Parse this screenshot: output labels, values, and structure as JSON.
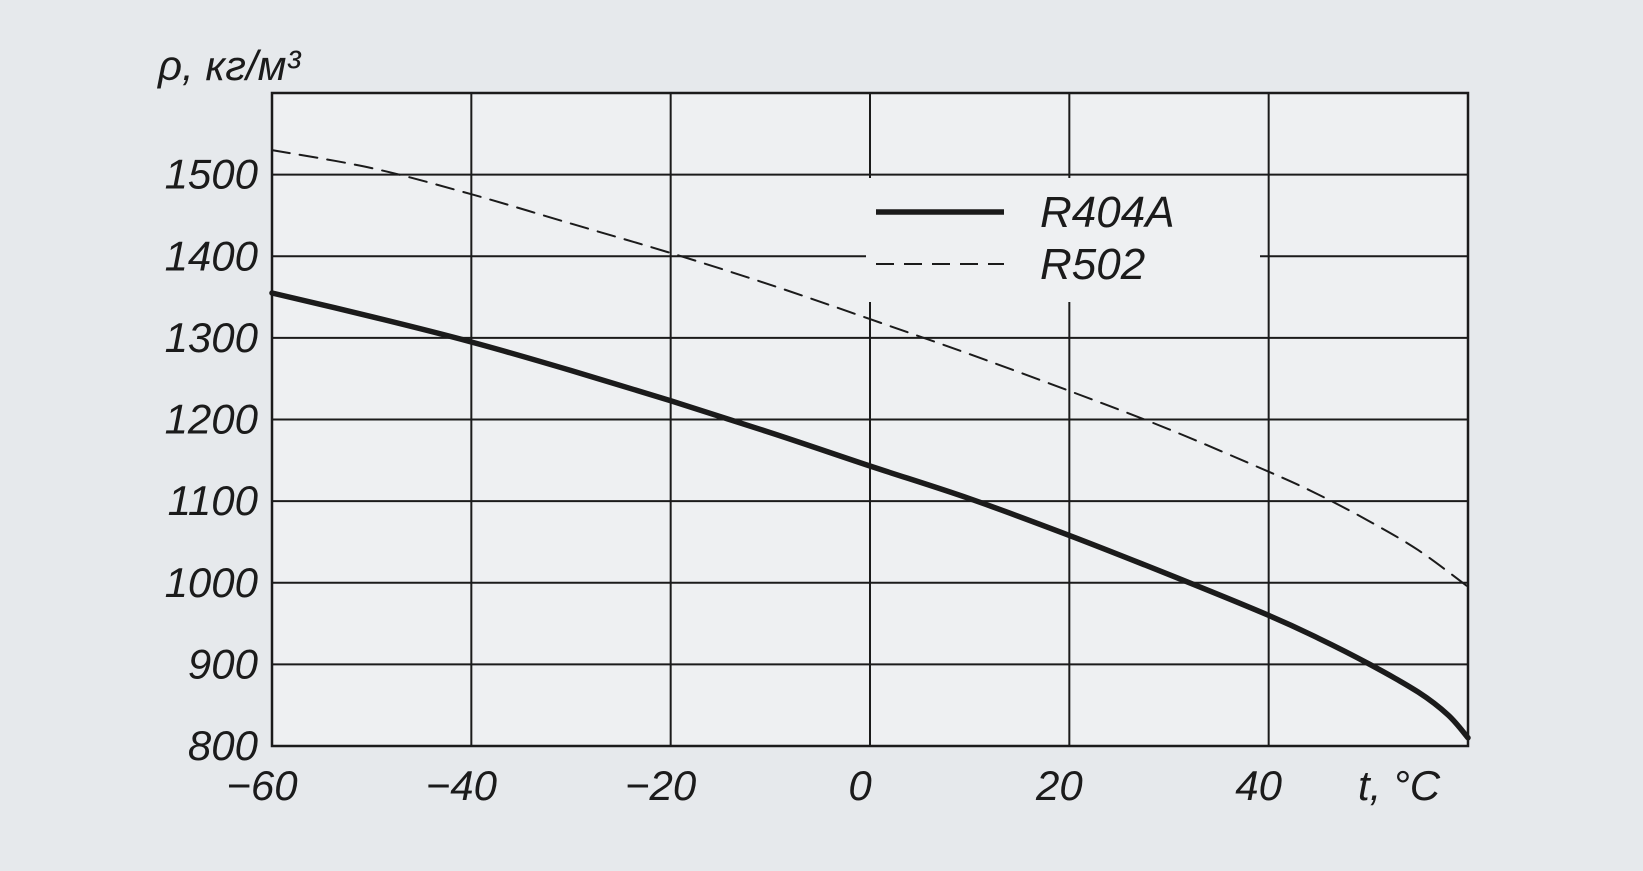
{
  "chart_data": {
    "type": "line",
    "ylabel": "ρ, кг/м³",
    "xlabel": "t, °C",
    "xlim": [
      -60,
      60
    ],
    "ylim": [
      800,
      1600
    ],
    "x_ticks": [
      -60,
      -40,
      -20,
      0,
      20,
      40
    ],
    "y_ticks": [
      800,
      900,
      1000,
      1100,
      1200,
      1300,
      1400,
      1500
    ],
    "x_grid": [
      -60,
      -40,
      -20,
      0,
      20,
      40,
      60
    ],
    "y_grid": [
      800,
      900,
      1000,
      1100,
      1200,
      1300,
      1400,
      1500,
      1600
    ],
    "grid": true,
    "legend_position": "top-right",
    "series": [
      {
        "name": "R404A",
        "style": "solid",
        "color": "#1b1b1b",
        "x": [
          -60,
          -50,
          -40,
          -30,
          -20,
          -10,
          0,
          10,
          20,
          30,
          40,
          45,
          50,
          55,
          58,
          60
        ],
        "y": [
          1355,
          1326,
          1295,
          1260,
          1223,
          1184,
          1143,
          1103,
          1058,
          1010,
          960,
          932,
          901,
          866,
          838,
          810
        ]
      },
      {
        "name": "R502",
        "style": "dashed",
        "color": "#1b1b1b",
        "x": [
          -60,
          -50,
          -40,
          -30,
          -20,
          -10,
          0,
          10,
          20,
          30,
          40,
          45,
          50,
          55,
          60
        ],
        "y": [
          1530,
          1508,
          1476,
          1440,
          1404,
          1365,
          1323,
          1280,
          1235,
          1188,
          1136,
          1108,
          1076,
          1040,
          995
        ]
      }
    ]
  }
}
